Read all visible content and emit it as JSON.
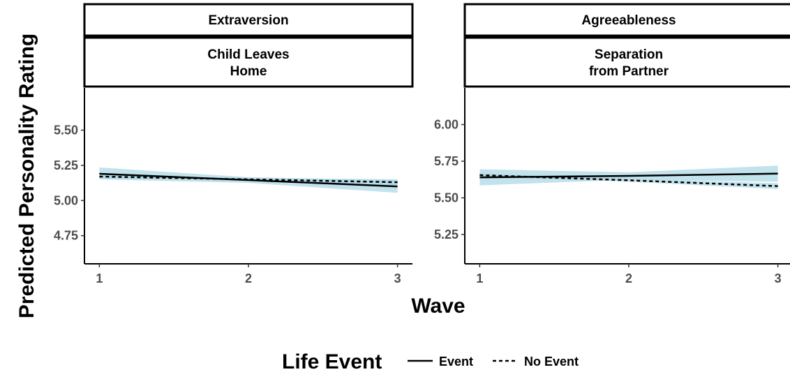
{
  "chart_data": {
    "type": "line",
    "ylabel": "Predicted Personality Rating",
    "xlabel": "Wave",
    "legend": {
      "title": "Life Event",
      "position": "bottom",
      "entries": [
        {
          "name": "Event",
          "linetype": "solid"
        },
        {
          "name": "No Event",
          "linetype": "dashed"
        }
      ]
    },
    "ribbon_color": "#add8e6",
    "line_color": "#000000",
    "panels": [
      {
        "strip_top": "Extraversion",
        "strip_bottom": [
          "Child Leaves",
          "Home"
        ],
        "x": [
          1,
          2,
          3
        ],
        "x_ticks": [
          "1",
          "2",
          "3"
        ],
        "y_ticks": [
          4.75,
          5.0,
          5.25,
          5.5
        ],
        "y_tick_labels": [
          "4.75",
          "5.00",
          "5.25",
          "5.50"
        ],
        "ylim": [
          4.55,
          5.8
        ],
        "series": [
          {
            "name": "Event",
            "values": [
              5.19,
              5.145,
              5.1
            ],
            "lower": [
              5.15,
              5.125,
              5.055
            ],
            "upper": [
              5.235,
              5.165,
              5.145
            ]
          },
          {
            "name": "No Event",
            "values": [
              5.17,
              5.15,
              5.13
            ],
            "lower": [
              5.16,
              5.14,
              5.11
            ],
            "upper": [
              5.18,
              5.16,
              5.15
            ]
          }
        ]
      },
      {
        "strip_top": "Agreeableness",
        "strip_bottom": [
          "Separation",
          "from Partner"
        ],
        "x": [
          1,
          2,
          3
        ],
        "x_ticks": [
          "1",
          "2",
          "3"
        ],
        "y_ticks": [
          5.25,
          5.5,
          5.75,
          6.0
        ],
        "y_tick_labels": [
          "5.25",
          "5.50",
          "5.75",
          "6.00"
        ],
        "ylim": [
          5.05,
          6.25
        ],
        "series": [
          {
            "name": "Event",
            "values": [
              5.64,
              5.65,
              5.665
            ],
            "lower": [
              5.585,
              5.625,
              5.61
            ],
            "upper": [
              5.695,
              5.675,
              5.72
            ]
          },
          {
            "name": "No Event",
            "values": [
              5.655,
              5.62,
              5.58
            ],
            "lower": [
              5.645,
              5.61,
              5.56
            ],
            "upper": [
              5.665,
              5.63,
              5.6
            ]
          }
        ]
      }
    ]
  }
}
